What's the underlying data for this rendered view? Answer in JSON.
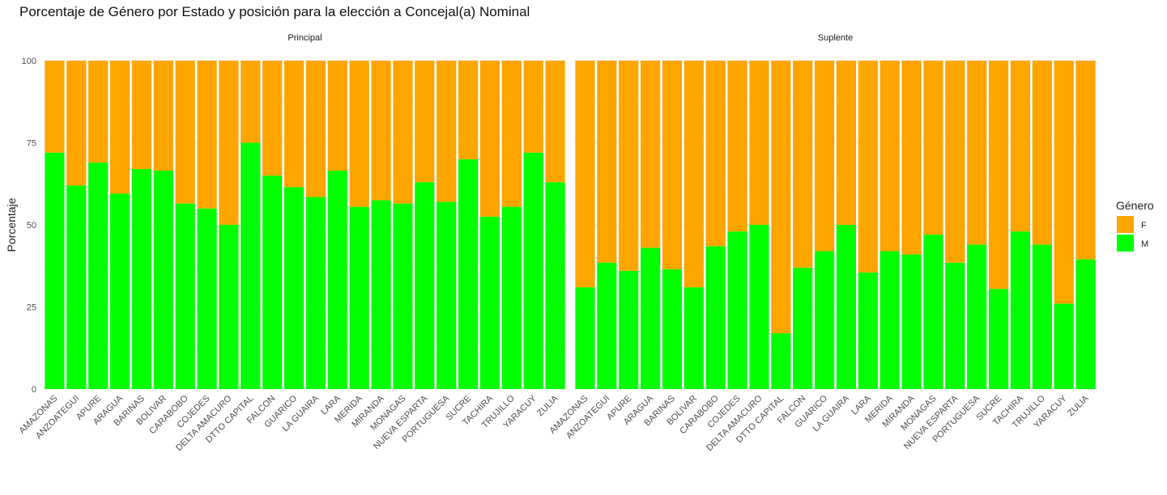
{
  "chart_data": {
    "type": "bar",
    "stacked": true,
    "title": "Porcentaje de Género por Estado y posición para la elección a Concejal(a) Nominal",
    "ylabel": "Porcentaje",
    "xlabel": "",
    "ylim": [
      0,
      100
    ],
    "yticks": [
      0,
      25,
      50,
      75,
      100
    ],
    "grid": true,
    "legend": {
      "title": "Género",
      "placement": "right",
      "entries": [
        {
          "label": "F",
          "color": "#FFA500"
        },
        {
          "label": "M",
          "color": "#00FF00"
        }
      ]
    },
    "categories": [
      "AMAZONAS",
      "ANZOATEGUI",
      "APURE",
      "ARAGUA",
      "BARINAS",
      "BOLIVAR",
      "CARABOBO",
      "COJEDES",
      "DELTA AMACURO",
      "DTTO CAPITAL",
      "FALCON",
      "GUARICO",
      "LA GUAIRA",
      "LARA",
      "MERIDA",
      "MIRANDA",
      "MONAGAS",
      "NUEVA ESPARTA",
      "PORTUGUESA",
      "SUCRE",
      "TACHIRA",
      "TRUJILLO",
      "YARACUY",
      "ZULIA"
    ],
    "panels": [
      {
        "name": "Principal",
        "series": [
          {
            "name": "M",
            "values": [
              72,
              62,
              69,
              59.5,
              67,
              66.5,
              56.5,
              55,
              50,
              75,
              65,
              61.5,
              58.5,
              66.5,
              55.5,
              57.5,
              56.5,
              63,
              57,
              70,
              52.5,
              55.5,
              72,
              63
            ]
          },
          {
            "name": "F",
            "values": [
              28,
              38,
              31,
              40.5,
              33,
              33.5,
              43.5,
              45,
              50,
              25,
              35,
              38.5,
              41.5,
              33.5,
              44.5,
              42.5,
              43.5,
              37,
              43,
              30,
              47.5,
              44.5,
              28,
              37
            ]
          }
        ]
      },
      {
        "name": "Suplente",
        "series": [
          {
            "name": "M",
            "values": [
              31,
              38.5,
              36,
              43,
              36.5,
              31,
              43.5,
              48,
              50,
              17,
              37,
              42,
              50,
              35.5,
              42,
              41,
              47,
              38.5,
              44,
              30.5,
              48,
              44,
              26,
              39.5
            ]
          },
          {
            "name": "F",
            "values": [
              69,
              61.5,
              64,
              57,
              63.5,
              69,
              56.5,
              52,
              50,
              83,
              63,
              58,
              50,
              64.5,
              58,
              59,
              53,
              61.5,
              56,
              69.5,
              52,
              56,
              74,
              60.5
            ]
          }
        ]
      }
    ]
  }
}
